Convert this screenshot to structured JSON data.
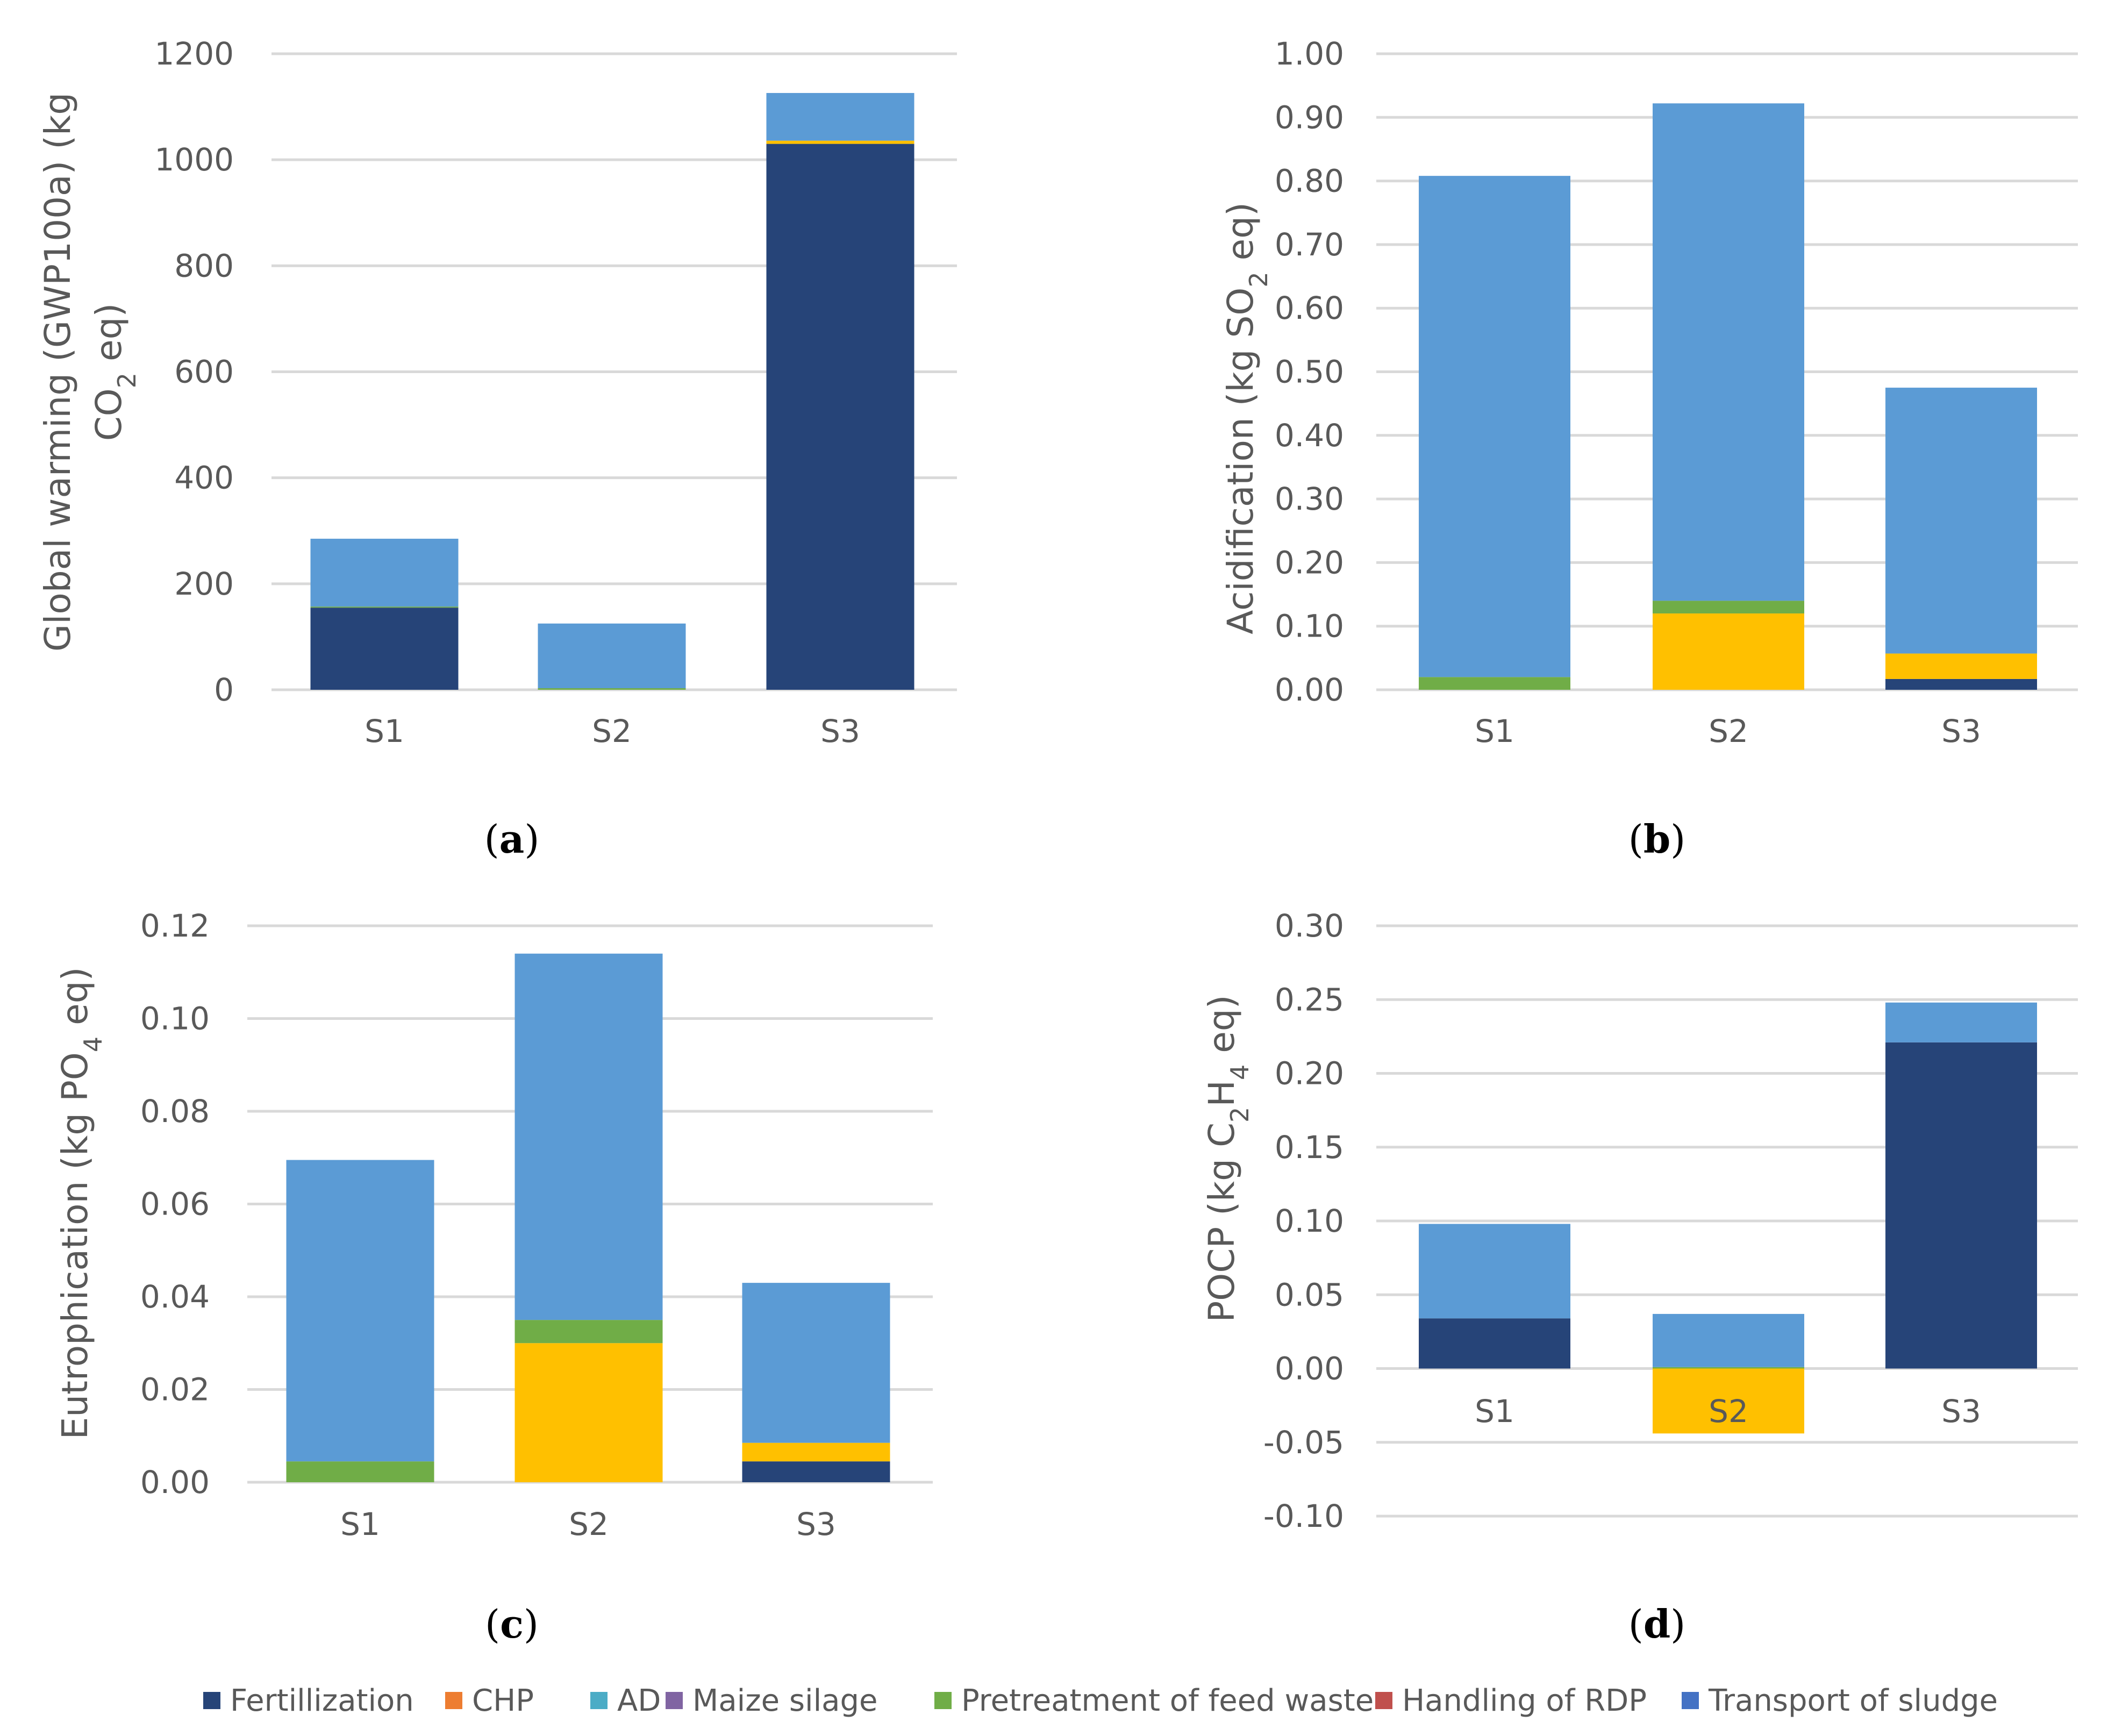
{
  "chart_data": [
    {
      "type": "bar",
      "stacked": true,
      "panel": "a",
      "categories": [
        "S1",
        "S2",
        "S3"
      ],
      "ylabel": "Global warming (GWP100a)  (kg CO2 eq)",
      "ylabel_lines": [
        "Global warming (GWP100a)  (kg",
        "CO",
        "2",
        " eq)"
      ],
      "ylim": [
        0,
        1200
      ],
      "yticks": [
        "0",
        "200",
        "400",
        "600",
        "800",
        "1000",
        "1200"
      ],
      "series": [
        {
          "name": "Fertillization",
          "values": [
            155,
            0,
            1030
          ]
        },
        {
          "name": "CHP",
          "values": [
            0,
            0,
            6
          ]
        },
        {
          "name": "AD",
          "values": [
            0,
            0,
            0
          ]
        },
        {
          "name": "Maize silage",
          "values": [
            0,
            0,
            0
          ]
        },
        {
          "name": "Pretreatment of feed waste",
          "values": [
            2,
            3,
            0
          ]
        },
        {
          "name": "Handling of RDP",
          "values": [
            0,
            0,
            0
          ]
        },
        {
          "name": "Transport of sludge",
          "values": [
            128,
            122,
            90
          ]
        }
      ]
    },
    {
      "type": "bar",
      "stacked": true,
      "panel": "b",
      "categories": [
        "S1",
        "S2",
        "S3"
      ],
      "ylabel": "Acidification (kg SO2 eq)",
      "ylim": [
        0,
        1.0
      ],
      "yticks": [
        "0.00",
        "0.10",
        "0.20",
        "0.30",
        "0.40",
        "0.50",
        "0.60",
        "0.70",
        "0.80",
        "0.90",
        "1.00"
      ],
      "series": [
        {
          "name": "Fertillization",
          "values": [
            0,
            0,
            0.017
          ]
        },
        {
          "name": "CHP",
          "values": [
            0,
            0.12,
            0.04
          ]
        },
        {
          "name": "AD",
          "values": [
            0,
            0,
            0
          ]
        },
        {
          "name": "Maize silage",
          "values": [
            0,
            0,
            0
          ]
        },
        {
          "name": "Pretreatment of feed waste",
          "values": [
            0.02,
            0.02,
            0
          ]
        },
        {
          "name": "Handling of RDP",
          "values": [
            0,
            0,
            0
          ]
        },
        {
          "name": "Transport of sludge",
          "values": [
            0.788,
            0.782,
            0.418
          ]
        }
      ]
    },
    {
      "type": "bar",
      "stacked": true,
      "panel": "c",
      "categories": [
        "S1",
        "S2",
        "S3"
      ],
      "ylabel": "Eutrophication (kg PO4 eq)",
      "ylim": [
        0,
        0.12
      ],
      "yticks": [
        "0.00",
        "0.02",
        "0.04",
        "0.06",
        "0.08",
        "0.10",
        "0.12"
      ],
      "series": [
        {
          "name": "Fertillization",
          "values": [
            0,
            0,
            0.0045
          ]
        },
        {
          "name": "CHP",
          "values": [
            0,
            0.03,
            0.004
          ]
        },
        {
          "name": "AD",
          "values": [
            0,
            0,
            0
          ]
        },
        {
          "name": "Maize silage",
          "values": [
            0,
            0,
            0
          ]
        },
        {
          "name": "Pretreatment of feed waste",
          "values": [
            0.0045,
            0.005,
            0
          ]
        },
        {
          "name": "Handling of RDP",
          "values": [
            0,
            0,
            0
          ]
        },
        {
          "name": "Transport of sludge",
          "values": [
            0.065,
            0.079,
            0.0345
          ]
        }
      ]
    },
    {
      "type": "bar",
      "stacked": true,
      "panel": "d",
      "categories": [
        "S1",
        "S2",
        "S3"
      ],
      "ylabel": "POCP (kg C2H4 eq)",
      "ylim": [
        -0.1,
        0.3
      ],
      "yticks": [
        "-0.10",
        "-0.05",
        "0.00",
        "0.05",
        "0.10",
        "0.15",
        "0.20",
        "0.25",
        "0.30"
      ],
      "series": [
        {
          "name": "Fertillization",
          "values": [
            0.034,
            0,
            0.221
          ]
        },
        {
          "name": "CHP",
          "values": [
            0,
            -0.044,
            0
          ]
        },
        {
          "name": "AD",
          "values": [
            0,
            0,
            0
          ]
        },
        {
          "name": "Maize silage",
          "values": [
            0,
            0,
            0
          ]
        },
        {
          "name": "Pretreatment of feed waste",
          "values": [
            0,
            0.001,
            0
          ]
        },
        {
          "name": "Handling of RDP",
          "values": [
            0,
            0,
            0
          ]
        },
        {
          "name": "Transport of sludge",
          "values": [
            0.064,
            0.036,
            0.027
          ]
        }
      ]
    }
  ],
  "panel_labels": [
    "a",
    "b",
    "c",
    "d"
  ],
  "legend": [
    {
      "name": "Fertillization",
      "color": "#264478"
    },
    {
      "name": "CHP",
      "color": "#ED7D31"
    },
    {
      "name": "AD",
      "color": "#4BACC6"
    },
    {
      "name": "Maize silage",
      "color": "#8064A2"
    },
    {
      "name": "Pretreatment of feed waste",
      "color": "#70AD47"
    },
    {
      "name": "Handling of RDP",
      "color": "#C0504D"
    },
    {
      "name": "Transport of sludge",
      "color": "#4472C4"
    }
  ],
  "series_colors": {
    "Fertillization": "#264478",
    "CHP": "#FFC000",
    "AD": "#4BACC6",
    "Maize silage": "#8064A2",
    "Pretreatment of feed waste": "#70AD47",
    "Handling of RDP": "#ED7D31",
    "Transport of sludge": "#5B9BD5"
  },
  "gridline_color": "#D9D9D9"
}
